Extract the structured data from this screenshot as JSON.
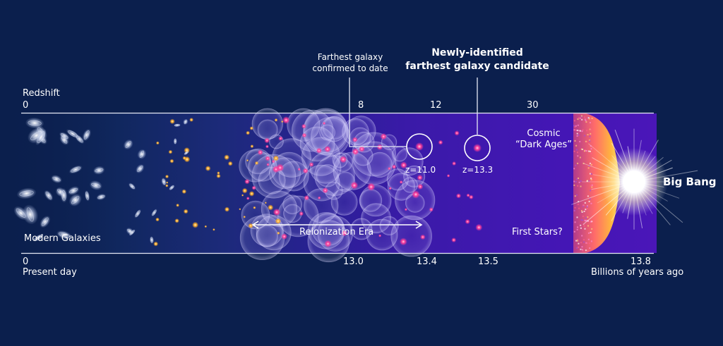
{
  "colors": {
    "background": "#0b1f4d",
    "era_purple": "#3a1aa8",
    "galaxy_magenta": "#ff3d9a",
    "galaxy_orange": "#f7a829",
    "big_bang_yellow": "#ffd84a",
    "big_bang_white": "#ffffff"
  },
  "redshift_axis": {
    "title": "Redshift",
    "ticks": [
      "0",
      "8",
      "12",
      "30"
    ]
  },
  "time_axis": {
    "ticks": [
      "0",
      "13.0",
      "13.4",
      "13.5",
      "13.8"
    ],
    "left_caption": "Present day",
    "right_caption": "Billions of years ago"
  },
  "callouts": {
    "confirmed": {
      "label_line1": "Farthest galaxy",
      "label_line2": "confirmed to date",
      "z_label": "z=11.0"
    },
    "candidate": {
      "label_line1": "Newly-identified",
      "label_line2": "farthest galaxy candidate",
      "z_label": "z=13.3"
    }
  },
  "regions": {
    "modern": "Modern Galaxies",
    "reionization": "Reionization Era",
    "dark_ages_line1": "Cosmic",
    "dark_ages_line2": "“Dark Ages”",
    "first_stars": "First Stars?",
    "big_bang": "Big Bang"
  },
  "icons": {
    "spiral_galaxy": "spiral-galaxy-icon",
    "ionized_bubble": "ionized-bubble-icon",
    "protogalaxy": "protogalaxy-dot-icon",
    "big_bang_flash": "big-bang-flash-icon",
    "era_arrow": "double-headed-arrow-icon"
  }
}
